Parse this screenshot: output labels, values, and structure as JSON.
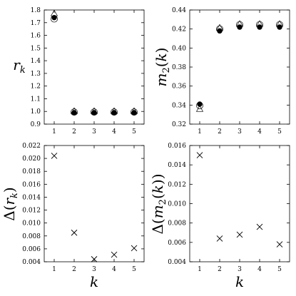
{
  "chart_data": [
    {
      "type": "scatter",
      "ylabel": "r_k",
      "xlabel": "",
      "xlim": [
        0.5,
        5.5
      ],
      "ylim": [
        0.9,
        1.8
      ],
      "x_ticks": [
        1,
        2,
        3,
        4,
        5
      ],
      "y_ticks": [
        0.9,
        1.0,
        1.1,
        1.2,
        1.3,
        1.4,
        1.5,
        1.6,
        1.7,
        1.8
      ],
      "y_tick_labels": [
        "0.9",
        "1.0",
        "1.1",
        "1.2",
        "1.3",
        "1.4",
        "1.5",
        "1.6",
        "1.7",
        "1.8"
      ],
      "series": [
        {
          "marker": "triangle-open",
          "x": [
            1,
            2,
            3,
            4,
            5
          ],
          "values": [
            1.77,
            1.0,
            1.0,
            1.0,
            1.0
          ]
        },
        {
          "marker": "circle-open",
          "x": [
            1,
            2,
            3,
            4,
            5
          ],
          "values": [
            1.73,
            0.995,
            0.995,
            0.995,
            0.995
          ]
        },
        {
          "marker": "circle-filled",
          "x": [
            1,
            2,
            3,
            4,
            5
          ],
          "values": [
            1.74,
            0.99,
            0.99,
            0.99,
            0.99
          ]
        }
      ]
    },
    {
      "type": "scatter",
      "ylabel": "m_2(k)",
      "xlabel": "",
      "xlim": [
        0.5,
        5.5
      ],
      "ylim": [
        0.32,
        0.44
      ],
      "x_ticks": [
        1,
        2,
        3,
        4,
        5
      ],
      "y_ticks": [
        0.32,
        0.34,
        0.36,
        0.38,
        0.4,
        0.42,
        0.44
      ],
      "y_tick_labels": [
        "0.32",
        "0.34",
        "0.36",
        "0.38",
        "0.40",
        "0.42",
        "0.44"
      ],
      "series": [
        {
          "marker": "triangle-open",
          "x": [
            1,
            2,
            3,
            4,
            5
          ],
          "values": [
            0.3355,
            0.421,
            0.425,
            0.425,
            0.425
          ]
        },
        {
          "marker": "circle-open",
          "x": [
            1,
            2,
            3,
            4,
            5
          ],
          "values": [
            0.3395,
            0.42,
            0.4245,
            0.4245,
            0.4245
          ]
        },
        {
          "marker": "circle-filled",
          "x": [
            1,
            2,
            3,
            4,
            5
          ],
          "values": [
            0.341,
            0.418,
            0.422,
            0.422,
            0.422
          ]
        }
      ]
    },
    {
      "type": "scatter",
      "ylabel": "Δ(r_k)",
      "xlabel": "k",
      "xlim": [
        0.5,
        5.5
      ],
      "ylim": [
        0.004,
        0.022
      ],
      "x_ticks": [
        1,
        2,
        3,
        4,
        5
      ],
      "y_ticks": [
        0.004,
        0.006,
        0.008,
        0.01,
        0.012,
        0.014,
        0.016,
        0.018,
        0.02,
        0.022
      ],
      "y_tick_labels": [
        "0.004",
        "0.006",
        "0.008",
        "0.010",
        "0.012",
        "0.014",
        "0.016",
        "0.018",
        "0.020",
        "0.022"
      ],
      "series": [
        {
          "marker": "cross",
          "x": [
            1,
            2,
            3,
            4,
            5
          ],
          "values": [
            0.0204,
            0.0085,
            0.0044,
            0.0051,
            0.0061
          ]
        }
      ]
    },
    {
      "type": "scatter",
      "ylabel": "Δ(m_2(k))",
      "xlabel": "k",
      "xlim": [
        0.5,
        5.5
      ],
      "ylim": [
        0.004,
        0.016
      ],
      "x_ticks": [
        1,
        2,
        3,
        4,
        5
      ],
      "y_ticks": [
        0.004,
        0.006,
        0.008,
        0.01,
        0.012,
        0.014,
        0.016
      ],
      "y_tick_labels": [
        "0.004",
        "0.006",
        "0.008",
        "0.010",
        "0.012",
        "0.014",
        "0.016"
      ],
      "series": [
        {
          "marker": "cross",
          "x": [
            1,
            2,
            3,
            4,
            5
          ],
          "values": [
            0.015,
            0.0064,
            0.0068,
            0.0076,
            0.0058
          ]
        }
      ]
    }
  ]
}
